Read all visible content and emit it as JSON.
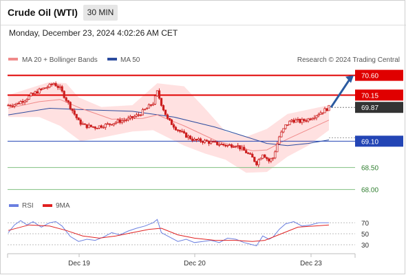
{
  "header": {
    "title": "Crude Oil (WTI)",
    "timeframe": "30 MIN"
  },
  "datetime": "Monday, December 23, 2024 4:02:26 AM CET",
  "legend": {
    "ma20": "MA 20 + Bollinger Bands",
    "ma50": "MA 50",
    "research": "Research © 2024 Trading Central"
  },
  "rsi_legend": {
    "rsi": "RSI",
    "ma9": "9MA"
  },
  "colors": {
    "candle": "#cc1f1f",
    "band": "#ffdede",
    "ma20": "#f08a8a",
    "ma50": "#2b4b9e",
    "resistance": "#e00000",
    "support_blue": "#2345b5",
    "support_green": "#7fbf7f",
    "arrow": "#2b5aa0",
    "rsi": "#6a7fe0",
    "rsi_ma": "#e02020"
  },
  "chart_data": [
    {
      "type": "candlestick",
      "instrument": "Crude Oil (WTI)",
      "interval": "30 MIN",
      "x_ticks": [
        "Dec 19",
        "Dec 20",
        "Dec 23"
      ],
      "ylim": [
        67.9,
        70.75
      ],
      "close_path": [
        [
          0,
          69.92
        ],
        [
          4,
          69.95
        ],
        [
          8,
          70.05
        ],
        [
          12,
          70.18
        ],
        [
          16,
          70.28
        ],
        [
          20,
          70.36
        ],
        [
          22,
          70.42
        ],
        [
          25,
          70.3
        ],
        [
          28,
          70.05
        ],
        [
          31,
          69.8
        ],
        [
          34,
          69.55
        ],
        [
          37,
          69.45
        ],
        [
          42,
          69.42
        ],
        [
          48,
          69.48
        ],
        [
          53,
          69.55
        ],
        [
          58,
          69.6
        ],
        [
          63,
          69.7
        ],
        [
          67,
          69.85
        ],
        [
          70,
          69.97
        ],
        [
          72,
          70.22
        ],
        [
          74,
          69.95
        ],
        [
          77,
          69.6
        ],
        [
          81,
          69.4
        ],
        [
          85,
          69.25
        ],
        [
          90,
          69.12
        ],
        [
          95,
          69.1
        ],
        [
          100,
          69.05
        ],
        [
          106,
          69.0
        ],
        [
          110,
          69.02
        ],
        [
          115,
          68.85
        ],
        [
          118,
          68.72
        ],
        [
          120,
          68.6
        ],
        [
          123,
          68.82
        ],
        [
          126,
          68.65
        ],
        [
          128,
          68.72
        ],
        [
          131,
          69.2
        ],
        [
          134,
          69.45
        ],
        [
          137,
          69.58
        ],
        [
          141,
          69.55
        ],
        [
          145,
          69.6
        ],
        [
          148,
          69.68
        ],
        [
          152,
          69.78
        ],
        [
          155,
          69.87
        ]
      ],
      "ma20_path": [
        [
          0,
          69.85
        ],
        [
          15,
          70.0
        ],
        [
          25,
          70.05
        ],
        [
          35,
          69.85
        ],
        [
          50,
          69.6
        ],
        [
          65,
          69.62
        ],
        [
          72,
          69.7
        ],
        [
          85,
          69.45
        ],
        [
          100,
          69.12
        ],
        [
          110,
          68.98
        ],
        [
          118,
          68.88
        ],
        [
          125,
          68.9
        ],
        [
          135,
          69.15
        ],
        [
          155,
          69.58
        ]
      ],
      "bb_upper_path": [
        [
          0,
          70.15
        ],
        [
          20,
          70.45
        ],
        [
          28,
          70.42
        ],
        [
          34,
          70.1
        ],
        [
          45,
          69.88
        ],
        [
          60,
          69.92
        ],
        [
          72,
          70.42
        ],
        [
          85,
          70.35
        ],
        [
          95,
          69.85
        ],
        [
          105,
          69.32
        ],
        [
          115,
          69.2
        ],
        [
          125,
          69.38
        ],
        [
          135,
          69.72
        ],
        [
          155,
          69.92
        ]
      ],
      "bb_lower_path": [
        [
          0,
          69.65
        ],
        [
          15,
          69.65
        ],
        [
          25,
          69.45
        ],
        [
          35,
          69.1
        ],
        [
          45,
          69.18
        ],
        [
          60,
          69.32
        ],
        [
          70,
          69.35
        ],
        [
          85,
          69.0
        ],
        [
          95,
          68.82
        ],
        [
          105,
          68.68
        ],
        [
          115,
          68.38
        ],
        [
          125,
          68.4
        ],
        [
          135,
          68.75
        ],
        [
          145,
          69.0
        ],
        [
          155,
          69.35
        ]
      ],
      "ma50_path": [
        [
          0,
          69.7
        ],
        [
          20,
          69.85
        ],
        [
          35,
          69.82
        ],
        [
          60,
          69.78
        ],
        [
          80,
          69.65
        ],
        [
          100,
          69.42
        ],
        [
          115,
          69.2
        ],
        [
          125,
          69.05
        ],
        [
          135,
          69.0
        ],
        [
          145,
          69.05
        ],
        [
          155,
          69.13
        ]
      ],
      "levels": [
        {
          "value": 70.6,
          "label": "70.60",
          "style": "resistance"
        },
        {
          "value": 70.15,
          "label": "70.15",
          "style": "resistance"
        },
        {
          "value": 69.87,
          "label": "69.87",
          "style": "current"
        },
        {
          "value": 69.1,
          "label": "69.10",
          "style": "support_blue"
        },
        {
          "value": 68.5,
          "label": "68.50",
          "style": "support_green"
        },
        {
          "value": 68.0,
          "label": "68.00",
          "style": "support_green"
        }
      ],
      "projection": {
        "from": 69.87,
        "to": 70.6
      }
    },
    {
      "type": "line",
      "series": [
        {
          "name": "RSI",
          "points": [
            [
              0,
              52
            ],
            [
              3,
              66
            ],
            [
              6,
              74
            ],
            [
              9,
              66
            ],
            [
              12,
              72
            ],
            [
              16,
              62
            ],
            [
              20,
              70
            ],
            [
              23,
              72
            ],
            [
              26,
              64
            ],
            [
              30,
              45
            ],
            [
              34,
              36
            ],
            [
              38,
              40
            ],
            [
              42,
              38
            ],
            [
              46,
              44
            ],
            [
              50,
              52
            ],
            [
              54,
              48
            ],
            [
              58,
              55
            ],
            [
              62,
              60
            ],
            [
              66,
              64
            ],
            [
              70,
              70
            ],
            [
              72,
              76
            ],
            [
              74,
              52
            ],
            [
              78,
              44
            ],
            [
              82,
              36
            ],
            [
              86,
              40
            ],
            [
              90,
              34
            ],
            [
              94,
              36
            ],
            [
              98,
              38
            ],
            [
              102,
              34
            ],
            [
              106,
              42
            ],
            [
              110,
              40
            ],
            [
              114,
              34
            ],
            [
              118,
              30
            ],
            [
              120,
              28
            ],
            [
              123,
              46
            ],
            [
              126,
              40
            ],
            [
              128,
              44
            ],
            [
              131,
              58
            ],
            [
              134,
              68
            ],
            [
              138,
              72
            ],
            [
              142,
              64
            ],
            [
              146,
              66
            ],
            [
              150,
              70
            ],
            [
              155,
              70
            ]
          ]
        },
        {
          "name": "9MA",
          "points": [
            [
              0,
              56
            ],
            [
              10,
              66
            ],
            [
              20,
              64
            ],
            [
              28,
              56
            ],
            [
              36,
              46
            ],
            [
              44,
              42
            ],
            [
              52,
              46
            ],
            [
              60,
              52
            ],
            [
              68,
              58
            ],
            [
              74,
              60
            ],
            [
              82,
              48
            ],
            [
              90,
              42
            ],
            [
              100,
              38
            ],
            [
              110,
              38
            ],
            [
              118,
              36
            ],
            [
              124,
              38
            ],
            [
              132,
              50
            ],
            [
              140,
              62
            ],
            [
              148,
              64
            ],
            [
              155,
              66
            ]
          ]
        }
      ],
      "levels": [
        {
          "value": 70,
          "label": "70"
        },
        {
          "value": 50,
          "label": "50"
        },
        {
          "value": 30,
          "label": "30"
        }
      ]
    }
  ]
}
